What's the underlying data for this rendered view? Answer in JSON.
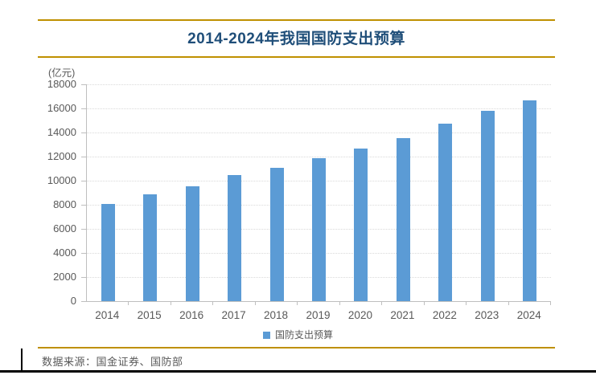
{
  "header": {
    "title": "2014-2024年我国国防支出预算"
  },
  "axis_unit_label": "(亿元)",
  "legend": {
    "label": "国防支出预算"
  },
  "footer": {
    "source_text": "数据来源：国金证券、国防部"
  },
  "colors": {
    "bar": "#5B9BD5",
    "title_text": "#1F4E79",
    "divider_gold": "#BF9000",
    "axis_text": "#595959",
    "gridline": "#D9D9D9",
    "axis_line": "#BFBFBF",
    "border_black": "#000000"
  },
  "chart_data": {
    "type": "bar",
    "title": "2014-2024年我国国防支出预算",
    "categories": [
      "2014",
      "2015",
      "2016",
      "2017",
      "2018",
      "2019",
      "2020",
      "2021",
      "2022",
      "2023",
      "2024"
    ],
    "values": [
      8082,
      8869,
      9544,
      10444,
      11070,
      11899,
      12680,
      13553,
      14761,
      15777,
      16655
    ],
    "series_name": "国防支出预算",
    "unit": "亿元",
    "xlabel": "",
    "ylabel": "(亿元)",
    "ylim": [
      0,
      18000
    ],
    "ytick_step": 2000,
    "yticks": [
      0,
      2000,
      4000,
      6000,
      8000,
      10000,
      12000,
      14000,
      16000,
      18000
    ],
    "grid": "horizontal-dotted",
    "legend_position": "bottom"
  }
}
